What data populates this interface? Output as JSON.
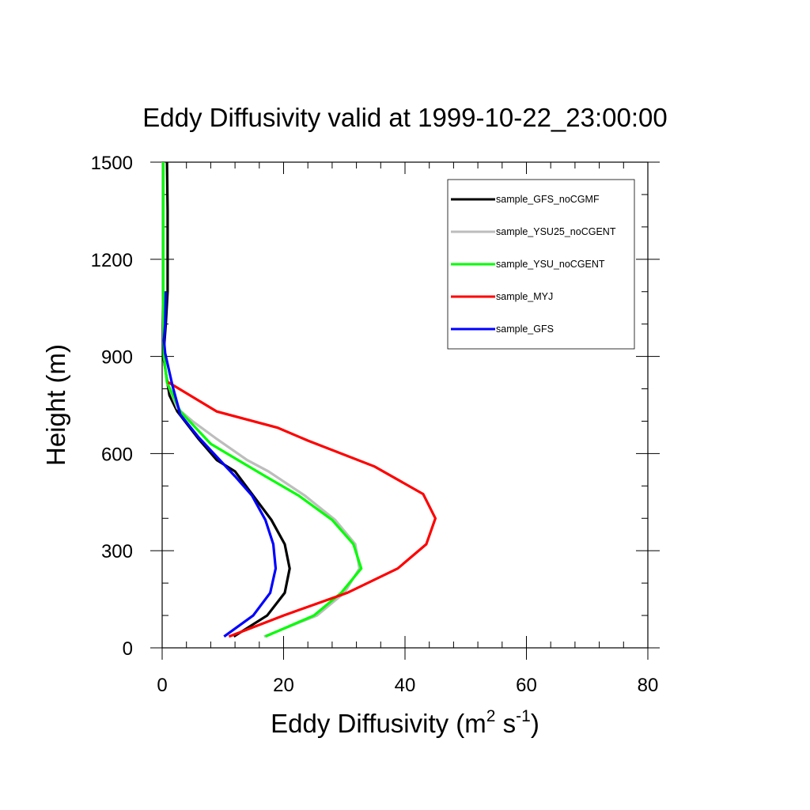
{
  "chart_data": {
    "type": "line",
    "title": "Eddy Diffusivity valid at 1999-10-22_23:00:00",
    "xlabel": "Eddy Diffusivity (m",
    "xlabel_sup1": "2",
    "xlabel_mid": " s",
    "xlabel_sup2": "-1",
    "xlabel_end": ")",
    "ylabel": "Height (m)",
    "xlim": [
      0,
      80
    ],
    "ylim": [
      0,
      1500
    ],
    "x_ticks": [
      0,
      20,
      40,
      60,
      80
    ],
    "x_tick_labels": [
      "0",
      "20",
      "40",
      "60",
      "80"
    ],
    "y_ticks": [
      0,
      300,
      600,
      900,
      1200,
      1500
    ],
    "y_tick_labels": [
      "0",
      "300",
      "600",
      "900",
      "1200",
      "1500"
    ],
    "x_minor_step": 4,
    "y_minor_step": 100,
    "grid": false,
    "legend_position": "top-right",
    "series": [
      {
        "name": "sample_GFS_noCGMF",
        "color": "#000000",
        "points": [
          [
            11.8,
            35
          ],
          [
            17.3,
            100
          ],
          [
            20.2,
            170
          ],
          [
            21.0,
            245
          ],
          [
            20.2,
            320
          ],
          [
            18.0,
            395
          ],
          [
            15.0,
            470
          ],
          [
            12.0,
            545
          ],
          [
            9.0,
            580
          ],
          [
            6.0,
            645
          ],
          [
            2.5,
            730
          ],
          [
            1.2,
            780
          ],
          [
            0.2,
            900
          ],
          [
            0.6,
            1000
          ],
          [
            0.9,
            1100
          ],
          [
            0.9,
            1200
          ],
          [
            0.9,
            1350
          ],
          [
            0.8,
            1500
          ]
        ]
      },
      {
        "name": "sample_YSU25_noCGENT",
        "color": "#bdbdbd",
        "points": [
          [
            16.8,
            35
          ],
          [
            25.5,
            100
          ],
          [
            30.0,
            170
          ],
          [
            32.5,
            245
          ],
          [
            31.8,
            320
          ],
          [
            28.5,
            395
          ],
          [
            23.5,
            470
          ],
          [
            17.5,
            545
          ],
          [
            14.0,
            580
          ],
          [
            9.0,
            645
          ],
          [
            5.0,
            700
          ],
          [
            2.5,
            740
          ],
          [
            0.8,
            820
          ],
          [
            0.3,
            900
          ],
          [
            0.1,
            1100
          ],
          [
            0.1,
            1300
          ],
          [
            0.1,
            1500
          ]
        ]
      },
      {
        "name": "sample_YSU_noCGENT",
        "color": "#00ff00",
        "points": [
          [
            17.0,
            35
          ],
          [
            25.0,
            100
          ],
          [
            29.5,
            170
          ],
          [
            32.8,
            245
          ],
          [
            31.5,
            320
          ],
          [
            28.0,
            395
          ],
          [
            22.5,
            470
          ],
          [
            17.0,
            530
          ],
          [
            12.5,
            580
          ],
          [
            8.0,
            630
          ],
          [
            3.0,
            730
          ],
          [
            0.8,
            820
          ],
          [
            0.3,
            900
          ],
          [
            0.2,
            1100
          ],
          [
            0.2,
            1300
          ],
          [
            0.2,
            1500
          ]
        ]
      },
      {
        "name": "sample_MYJ",
        "color": "#ff0000",
        "points": [
          [
            11.0,
            35
          ],
          [
            20.0,
            100
          ],
          [
            30.5,
            170
          ],
          [
            38.8,
            245
          ],
          [
            43.5,
            320
          ],
          [
            45.0,
            400
          ],
          [
            43.0,
            475
          ],
          [
            35.0,
            560
          ],
          [
            24.0,
            640
          ],
          [
            19.0,
            680
          ],
          [
            9.0,
            730
          ],
          [
            1.0,
            820
          ]
        ]
      },
      {
        "name": "sample_GFS",
        "color": "#0000ff",
        "points": [
          [
            10.2,
            35
          ],
          [
            15.0,
            100
          ],
          [
            17.8,
            170
          ],
          [
            18.7,
            245
          ],
          [
            18.3,
            320
          ],
          [
            17.0,
            395
          ],
          [
            14.8,
            470
          ],
          [
            12.0,
            530
          ],
          [
            8.5,
            600
          ],
          [
            6.0,
            650
          ],
          [
            3.0,
            720
          ],
          [
            1.7,
            810
          ],
          [
            0.5,
            910
          ],
          [
            0.3,
            950
          ],
          [
            0.5,
            1000
          ],
          [
            0.6,
            1100
          ]
        ]
      }
    ]
  }
}
